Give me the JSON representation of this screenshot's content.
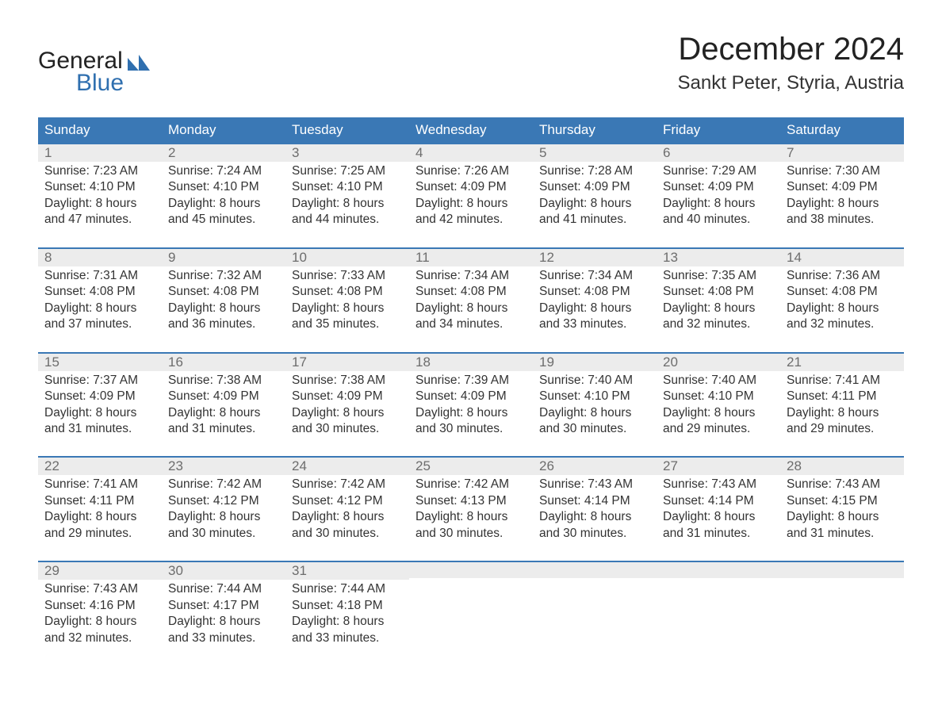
{
  "colors": {
    "header_bg": "#3a78b5",
    "header_text": "#ffffff",
    "week_border": "#3a78b5",
    "daynum_bg": "#ececec",
    "daynum_text": "#6d6d6d",
    "body_text": "#333333",
    "logo_blue": "#2f6faf",
    "logo_dark": "#222222",
    "title_text": "#222222",
    "page_bg": "#ffffff"
  },
  "logo": {
    "line1": "General",
    "line2": "Blue"
  },
  "title": "December 2024",
  "location": "Sankt Peter, Styria, Austria",
  "columns": [
    "Sunday",
    "Monday",
    "Tuesday",
    "Wednesday",
    "Thursday",
    "Friday",
    "Saturday"
  ],
  "labels": {
    "sunrise": "Sunrise",
    "sunset": "Sunset",
    "daylight": "Daylight"
  },
  "weeks": [
    [
      {
        "day": "1",
        "sunrise": "7:23 AM",
        "sunset": "4:10 PM",
        "daylight_h": "8",
        "daylight_m": "47"
      },
      {
        "day": "2",
        "sunrise": "7:24 AM",
        "sunset": "4:10 PM",
        "daylight_h": "8",
        "daylight_m": "45"
      },
      {
        "day": "3",
        "sunrise": "7:25 AM",
        "sunset": "4:10 PM",
        "daylight_h": "8",
        "daylight_m": "44"
      },
      {
        "day": "4",
        "sunrise": "7:26 AM",
        "sunset": "4:09 PM",
        "daylight_h": "8",
        "daylight_m": "42"
      },
      {
        "day": "5",
        "sunrise": "7:28 AM",
        "sunset": "4:09 PM",
        "daylight_h": "8",
        "daylight_m": "41"
      },
      {
        "day": "6",
        "sunrise": "7:29 AM",
        "sunset": "4:09 PM",
        "daylight_h": "8",
        "daylight_m": "40"
      },
      {
        "day": "7",
        "sunrise": "7:30 AM",
        "sunset": "4:09 PM",
        "daylight_h": "8",
        "daylight_m": "38"
      }
    ],
    [
      {
        "day": "8",
        "sunrise": "7:31 AM",
        "sunset": "4:08 PM",
        "daylight_h": "8",
        "daylight_m": "37"
      },
      {
        "day": "9",
        "sunrise": "7:32 AM",
        "sunset": "4:08 PM",
        "daylight_h": "8",
        "daylight_m": "36"
      },
      {
        "day": "10",
        "sunrise": "7:33 AM",
        "sunset": "4:08 PM",
        "daylight_h": "8",
        "daylight_m": "35"
      },
      {
        "day": "11",
        "sunrise": "7:34 AM",
        "sunset": "4:08 PM",
        "daylight_h": "8",
        "daylight_m": "34"
      },
      {
        "day": "12",
        "sunrise": "7:34 AM",
        "sunset": "4:08 PM",
        "daylight_h": "8",
        "daylight_m": "33"
      },
      {
        "day": "13",
        "sunrise": "7:35 AM",
        "sunset": "4:08 PM",
        "daylight_h": "8",
        "daylight_m": "32"
      },
      {
        "day": "14",
        "sunrise": "7:36 AM",
        "sunset": "4:08 PM",
        "daylight_h": "8",
        "daylight_m": "32"
      }
    ],
    [
      {
        "day": "15",
        "sunrise": "7:37 AM",
        "sunset": "4:09 PM",
        "daylight_h": "8",
        "daylight_m": "31"
      },
      {
        "day": "16",
        "sunrise": "7:38 AM",
        "sunset": "4:09 PM",
        "daylight_h": "8",
        "daylight_m": "31"
      },
      {
        "day": "17",
        "sunrise": "7:38 AM",
        "sunset": "4:09 PM",
        "daylight_h": "8",
        "daylight_m": "30"
      },
      {
        "day": "18",
        "sunrise": "7:39 AM",
        "sunset": "4:09 PM",
        "daylight_h": "8",
        "daylight_m": "30"
      },
      {
        "day": "19",
        "sunrise": "7:40 AM",
        "sunset": "4:10 PM",
        "daylight_h": "8",
        "daylight_m": "30"
      },
      {
        "day": "20",
        "sunrise": "7:40 AM",
        "sunset": "4:10 PM",
        "daylight_h": "8",
        "daylight_m": "29"
      },
      {
        "day": "21",
        "sunrise": "7:41 AM",
        "sunset": "4:11 PM",
        "daylight_h": "8",
        "daylight_m": "29"
      }
    ],
    [
      {
        "day": "22",
        "sunrise": "7:41 AM",
        "sunset": "4:11 PM",
        "daylight_h": "8",
        "daylight_m": "29"
      },
      {
        "day": "23",
        "sunrise": "7:42 AM",
        "sunset": "4:12 PM",
        "daylight_h": "8",
        "daylight_m": "30"
      },
      {
        "day": "24",
        "sunrise": "7:42 AM",
        "sunset": "4:12 PM",
        "daylight_h": "8",
        "daylight_m": "30"
      },
      {
        "day": "25",
        "sunrise": "7:42 AM",
        "sunset": "4:13 PM",
        "daylight_h": "8",
        "daylight_m": "30"
      },
      {
        "day": "26",
        "sunrise": "7:43 AM",
        "sunset": "4:14 PM",
        "daylight_h": "8",
        "daylight_m": "30"
      },
      {
        "day": "27",
        "sunrise": "7:43 AM",
        "sunset": "4:14 PM",
        "daylight_h": "8",
        "daylight_m": "31"
      },
      {
        "day": "28",
        "sunrise": "7:43 AM",
        "sunset": "4:15 PM",
        "daylight_h": "8",
        "daylight_m": "31"
      }
    ],
    [
      {
        "day": "29",
        "sunrise": "7:43 AM",
        "sunset": "4:16 PM",
        "daylight_h": "8",
        "daylight_m": "32"
      },
      {
        "day": "30",
        "sunrise": "7:44 AM",
        "sunset": "4:17 PM",
        "daylight_h": "8",
        "daylight_m": "33"
      },
      {
        "day": "31",
        "sunrise": "7:44 AM",
        "sunset": "4:18 PM",
        "daylight_h": "8",
        "daylight_m": "33"
      },
      null,
      null,
      null,
      null
    ]
  ]
}
